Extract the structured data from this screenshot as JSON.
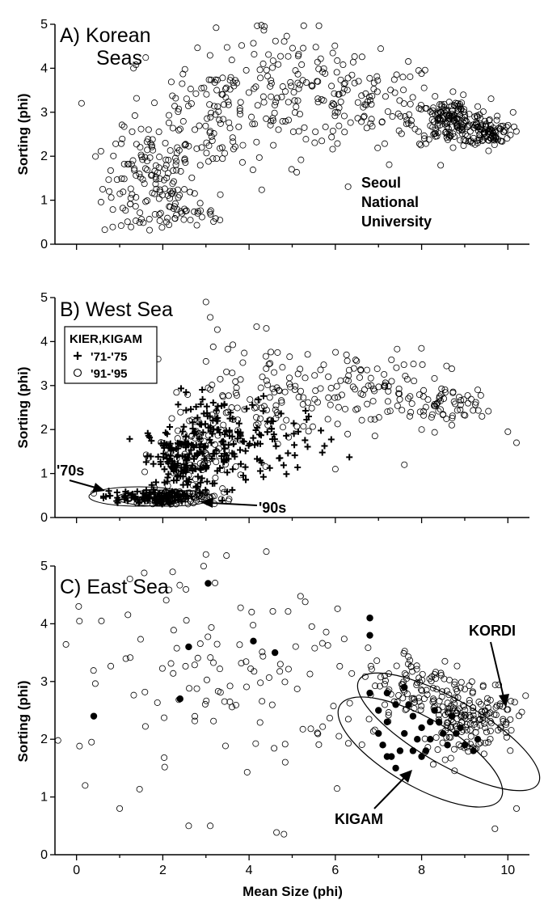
{
  "figure": {
    "x_axis_label": "Mean Size (phi)",
    "x_ticks": [
      "0",
      "2",
      "4",
      "6",
      "8",
      "10"
    ]
  },
  "colors": {
    "ink": "#000000",
    "background": "#ffffff"
  },
  "chart_data": [
    {
      "type": "scatter",
      "panel": "A",
      "title": "A) Korean Seas",
      "title_line1": "A) Korean",
      "title_line2": "Seas",
      "xlabel": "",
      "ylabel": "Sorting (phi)",
      "xlim": [
        -0.5,
        10.5
      ],
      "ylim": [
        0,
        5
      ],
      "y_ticks": [
        "0",
        "1",
        "2",
        "3",
        "4",
        "5"
      ],
      "annotations": [
        "Seoul",
        "National",
        "University"
      ],
      "series": [
        {
          "marker": "open-circle",
          "clusters": [
            {
              "cx": 1.7,
              "cy": 1.3,
              "sx": 0.55,
              "sy": 0.65,
              "n": 140
            },
            {
              "cx": 3.3,
              "cy": 3.0,
              "sx": 1.1,
              "sy": 0.85,
              "n": 150
            },
            {
              "cx": 5.0,
              "cy": 3.6,
              "sx": 1.0,
              "sy": 0.7,
              "n": 90
            },
            {
              "cx": 6.8,
              "cy": 3.1,
              "sx": 0.8,
              "sy": 0.55,
              "n": 90
            },
            {
              "cx": 8.7,
              "cy": 2.8,
              "sx": 0.45,
              "sy": 0.25,
              "n": 180
            },
            {
              "cx": 9.6,
              "cy": 2.55,
              "sx": 0.25,
              "sy": 0.15,
              "n": 80
            },
            {
              "cx": 2.6,
              "cy": 0.6,
              "sx": 0.5,
              "sy": 0.15,
              "n": 20
            }
          ]
        }
      ]
    },
    {
      "type": "scatter",
      "panel": "B",
      "title": "B) West Sea",
      "xlabel": "",
      "ylabel": "Sorting (phi)",
      "xlim": [
        -0.5,
        10.5
      ],
      "ylim": [
        0,
        5
      ],
      "y_ticks": [
        "0",
        "1",
        "2",
        "3",
        "4",
        "5"
      ],
      "legend": {
        "title": "KIER,KIGAM",
        "position": "top-left"
      },
      "annotations": [
        "'70s",
        "'90s"
      ],
      "series": [
        {
          "name": "'71-'75",
          "marker": "plus",
          "clusters": [
            {
              "cx": 1.5,
              "cy": 0.45,
              "sx": 0.45,
              "sy": 0.08,
              "n": 80
            },
            {
              "cx": 2.4,
              "cy": 1.2,
              "sx": 0.35,
              "sy": 0.45,
              "n": 140
            },
            {
              "cx": 3.3,
              "cy": 1.7,
              "sx": 0.55,
              "sy": 0.55,
              "n": 110
            },
            {
              "cx": 4.5,
              "cy": 1.8,
              "sx": 0.7,
              "sy": 0.4,
              "n": 60
            }
          ]
        },
        {
          "name": "'91-'95",
          "marker": "open-circle",
          "clusters": [
            {
              "cx": 2.3,
              "cy": 0.45,
              "sx": 0.45,
              "sy": 0.1,
              "n": 120
            },
            {
              "cx": 2.9,
              "cy": 1.4,
              "sx": 0.5,
              "sy": 0.6,
              "n": 80
            },
            {
              "cx": 4.6,
              "cy": 2.9,
              "sx": 0.9,
              "sy": 0.55,
              "n": 110
            },
            {
              "cx": 6.8,
              "cy": 2.9,
              "sx": 0.9,
              "sy": 0.45,
              "n": 80
            },
            {
              "cx": 8.5,
              "cy": 2.5,
              "sx": 0.4,
              "sy": 0.2,
              "n": 50
            }
          ],
          "points": [
            [
              10.2,
              1.7
            ],
            [
              10.0,
              1.95
            ],
            [
              9.4,
              2.3
            ],
            [
              8.7,
              2.1
            ],
            [
              8.0,
              2.0
            ],
            [
              3.0,
              4.9
            ],
            [
              3.1,
              4.55
            ],
            [
              4.4,
              4.3
            ],
            [
              0.4,
              0.55
            ],
            [
              6.0,
              1.1
            ],
            [
              7.6,
              1.2
            ]
          ]
        }
      ]
    },
    {
      "type": "scatter",
      "panel": "C",
      "title": "C) East Sea",
      "xlabel": "Mean Size (phi)",
      "ylabel": "Sorting (phi)",
      "xlim": [
        -0.5,
        10.5
      ],
      "ylim": [
        0,
        5
      ],
      "y_ticks": [
        "0",
        "1",
        "2",
        "3",
        "4",
        "5"
      ],
      "annotations": [
        "KORDI",
        "KIGAM"
      ],
      "series": [
        {
          "marker": "open-circle",
          "clusters": [
            {
              "cx": 2.2,
              "cy": 3.3,
              "sx": 1.3,
              "sy": 1.0,
              "n": 70
            },
            {
              "cx": 5.2,
              "cy": 3.0,
              "sx": 1.1,
              "sy": 1.1,
              "n": 60
            },
            {
              "cx": 7.9,
              "cy": 2.9,
              "sx": 0.6,
              "sy": 0.35,
              "n": 90
            },
            {
              "cx": 9.1,
              "cy": 2.4,
              "sx": 0.55,
              "sy": 0.35,
              "n": 170
            }
          ],
          "points": [
            [
              2.6,
              0.5
            ],
            [
              3.1,
              0.5
            ],
            [
              1.0,
              0.8
            ],
            [
              10.2,
              0.8
            ],
            [
              9.7,
              0.45
            ],
            [
              0.2,
              1.2
            ],
            [
              0.05,
              4.3
            ],
            [
              3.0,
              5.2
            ],
            [
              4.4,
              5.25
            ]
          ]
        },
        {
          "marker": "filled-circle",
          "points": [
            [
              3.05,
              4.7
            ],
            [
              6.8,
              4.1
            ],
            [
              6.8,
              3.8
            ],
            [
              2.6,
              3.6
            ],
            [
              4.1,
              3.7
            ],
            [
              4.6,
              3.5
            ],
            [
              2.4,
              2.7
            ],
            [
              0.4,
              2.4
            ],
            [
              6.8,
              2.8
            ],
            [
              7.0,
              2.5
            ],
            [
              7.2,
              2.3
            ],
            [
              7.4,
              2.6
            ],
            [
              7.6,
              2.1
            ],
            [
              7.8,
              2.4
            ],
            [
              8.0,
              2.2
            ],
            [
              8.2,
              2.0
            ],
            [
              8.4,
              2.3
            ],
            [
              8.6,
              1.9
            ],
            [
              8.8,
              2.1
            ],
            [
              9.0,
              1.9
            ],
            [
              9.2,
              1.8
            ],
            [
              7.1,
              1.9
            ],
            [
              7.3,
              1.7
            ],
            [
              7.5,
              1.8
            ],
            [
              7.7,
              2.6
            ],
            [
              7.9,
              2.0
            ],
            [
              8.1,
              1.8
            ],
            [
              8.3,
              2.5
            ],
            [
              8.5,
              2.1
            ],
            [
              8.7,
              2.4
            ],
            [
              7.0,
              2.1
            ],
            [
              7.2,
              2.8
            ],
            [
              7.6,
              2.9
            ],
            [
              8.0,
              1.7
            ],
            [
              8.9,
              2.2
            ],
            [
              9.3,
              2.0
            ],
            [
              7.4,
              1.5
            ],
            [
              7.8,
              1.8
            ],
            [
              7.2,
              1.7
            ],
            [
              8.2,
              2.3
            ]
          ]
        }
      ]
    }
  ]
}
